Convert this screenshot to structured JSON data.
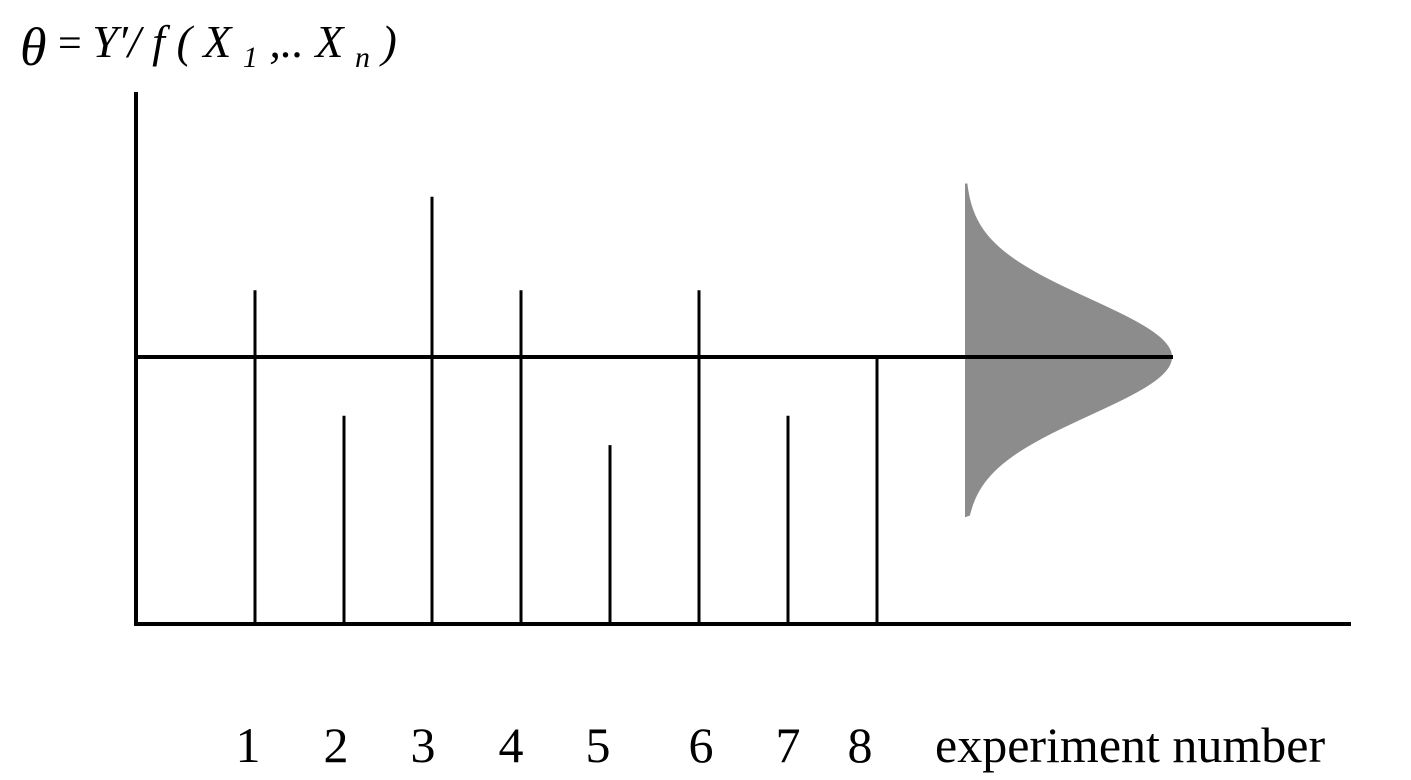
{
  "chart_data": {
    "type": "bar",
    "ylabel": {
      "theta": "θ",
      "equals": " = ",
      "numerator": "Y′/ ",
      "func": "f",
      "open": "(",
      "x1_base": "X",
      "x1_sub": "1",
      "dots": ",..",
      "xn_base": "X",
      "xn_sub": "n",
      "close": ")"
    },
    "xlabel": "experiment number",
    "categories": [
      "1",
      "2",
      "3",
      "4",
      "5",
      "6",
      "7",
      "8"
    ],
    "values": [
      1.25,
      0.78,
      1.6,
      1.25,
      0.67,
      1.25,
      0.78,
      1.0
    ],
    "reference_value": 1.0,
    "ylim": [
      0,
      2.0
    ],
    "distribution": {
      "shape": "normal",
      "mean": 1.0,
      "spread_min": 0.4,
      "spread_max": 1.65,
      "fill_color": "#8c8c8c"
    },
    "colors": {
      "axis": "#000000",
      "bars": "#000000"
    }
  }
}
